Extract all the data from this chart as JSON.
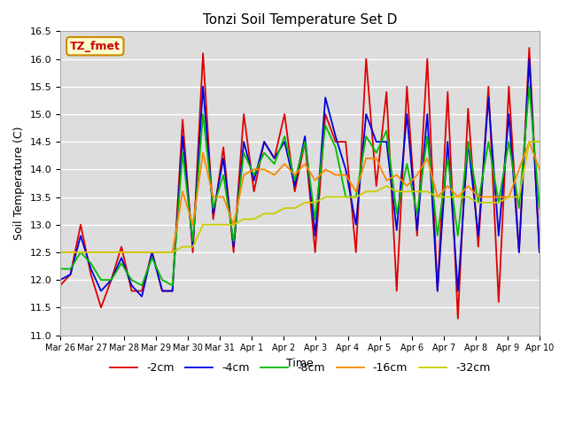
{
  "title": "Tonzi Soil Temperature Set D",
  "xlabel": "Time",
  "ylabel": "Soil Temperature (C)",
  "ylim": [
    11.0,
    16.5
  ],
  "legend_label": "TZ_fmet",
  "series_labels": [
    "-2cm",
    "-4cm",
    "-8cm",
    "-16cm",
    "-32cm"
  ],
  "series_colors": [
    "#dd0000",
    "#0000dd",
    "#00bb00",
    "#ff8800",
    "#cccc00"
  ],
  "background_color": "#e0e0e0",
  "x_tick_labels": [
    "Mar 26",
    "Mar 27",
    "Mar 28",
    "Mar 29",
    "Mar 30",
    "Mar 31",
    "Apr 1",
    "Apr 2",
    "Apr 3",
    "Apr 4",
    "Apr 5",
    "Apr 6",
    "Apr 7",
    "Apr 8",
    "Apr 9",
    "Apr 10"
  ],
  "data_2cm": [
    11.9,
    12.1,
    13.0,
    12.1,
    11.5,
    12.0,
    12.6,
    11.8,
    11.8,
    12.5,
    11.8,
    11.8,
    14.9,
    12.5,
    16.1,
    13.1,
    14.4,
    12.5,
    15.0,
    13.6,
    14.5,
    14.2,
    15.0,
    13.6,
    14.5,
    12.5,
    15.0,
    14.5,
    14.5,
    12.5,
    16.0,
    13.7,
    15.4,
    11.8,
    15.5,
    12.8,
    16.0,
    11.8,
    15.4,
    11.3,
    15.1,
    12.6,
    15.5,
    11.6,
    15.5,
    12.5,
    16.2,
    12.5
  ],
  "data_4cm": [
    12.0,
    12.1,
    12.8,
    12.2,
    11.8,
    12.0,
    12.4,
    11.9,
    11.7,
    12.5,
    11.8,
    11.8,
    14.6,
    12.6,
    15.5,
    13.2,
    14.2,
    12.6,
    14.5,
    13.8,
    14.5,
    14.2,
    14.5,
    13.7,
    14.6,
    12.8,
    15.3,
    14.6,
    14.0,
    13.0,
    15.0,
    14.5,
    14.5,
    12.9,
    15.0,
    12.9,
    15.0,
    11.8,
    14.5,
    11.8,
    14.5,
    12.8,
    15.3,
    12.8,
    15.0,
    12.5,
    16.0,
    12.5
  ],
  "data_8cm": [
    12.2,
    12.2,
    12.5,
    12.3,
    12.0,
    12.0,
    12.3,
    12.0,
    11.9,
    12.4,
    12.0,
    11.9,
    14.3,
    12.7,
    15.0,
    13.3,
    13.9,
    12.7,
    14.3,
    13.9,
    14.3,
    14.1,
    14.6,
    13.8,
    14.5,
    13.1,
    14.8,
    14.4,
    13.5,
    13.5,
    14.6,
    14.3,
    14.7,
    13.2,
    14.1,
    13.2,
    14.6,
    12.8,
    14.2,
    12.8,
    14.5,
    13.4,
    14.5,
    13.4,
    14.5,
    13.3,
    15.5,
    13.3
  ],
  "data_16cm": [
    12.5,
    12.5,
    12.5,
    12.5,
    12.5,
    12.5,
    12.5,
    12.5,
    12.5,
    12.5,
    12.5,
    12.5,
    13.6,
    13.0,
    14.3,
    13.5,
    13.5,
    13.0,
    13.9,
    14.0,
    14.0,
    13.9,
    14.1,
    13.9,
    14.1,
    13.8,
    14.0,
    13.9,
    13.9,
    13.6,
    14.2,
    14.2,
    13.8,
    13.9,
    13.7,
    13.9,
    14.2,
    13.5,
    13.7,
    13.5,
    13.7,
    13.5,
    13.5,
    13.5,
    13.5,
    14.0,
    14.5,
    14.0
  ],
  "data_32cm": [
    12.5,
    12.5,
    12.5,
    12.5,
    12.5,
    12.5,
    12.5,
    12.5,
    12.5,
    12.5,
    12.5,
    12.5,
    12.6,
    12.6,
    13.0,
    13.0,
    13.0,
    13.0,
    13.1,
    13.1,
    13.2,
    13.2,
    13.3,
    13.3,
    13.4,
    13.4,
    13.5,
    13.5,
    13.5,
    13.5,
    13.6,
    13.6,
    13.7,
    13.6,
    13.6,
    13.6,
    13.6,
    13.5,
    13.5,
    13.5,
    13.5,
    13.4,
    13.4,
    13.4,
    13.5,
    13.5,
    14.5,
    14.5
  ]
}
